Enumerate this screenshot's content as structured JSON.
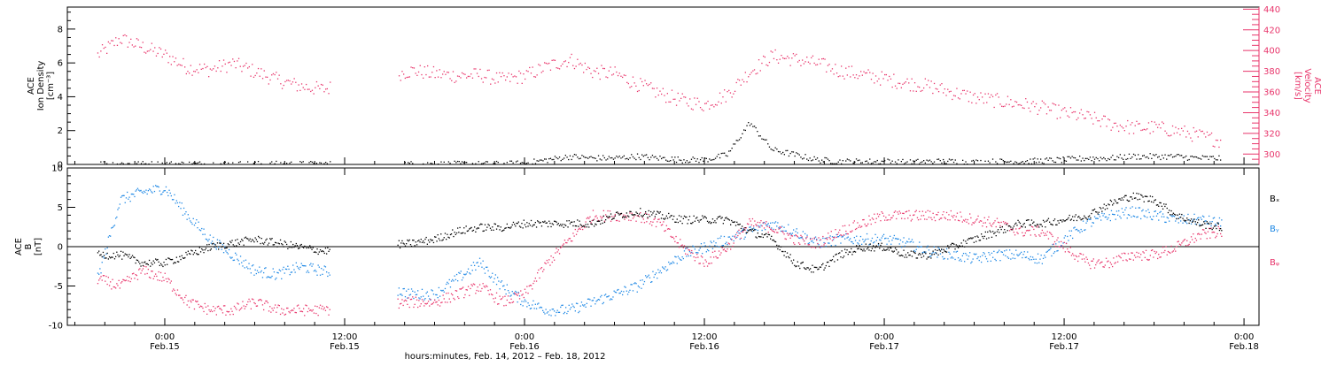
{
  "chart_data": [
    {
      "type": "scatter",
      "panel": "top",
      "ylabel_left": [
        "ACE",
        "Ion Density",
        "[cm⁻³]"
      ],
      "ylabel_right": [
        "ACE",
        "Velocity",
        "[km/s]"
      ],
      "y_left_ticks": [
        "0",
        "2",
        "4",
        "6",
        "8"
      ],
      "y_left_range": [
        0,
        9.3
      ],
      "y_right_ticks": [
        "300",
        "320",
        "340",
        "360",
        "380",
        "400",
        "420",
        "440"
      ],
      "y_right_range": [
        290,
        442
      ],
      "colors": {
        "density": "#000000",
        "velocity": "#e8356b"
      },
      "series": [
        {
          "name": "",
          "axis": "right",
          "color": "#e8356b",
          "x_hours": [
            -4.5,
            -3,
            -1.5,
            0,
            1.5,
            3,
            4.5,
            6,
            7.5,
            9,
            10.5,
            16.5,
            18,
            19.5,
            21,
            22.5,
            24,
            25.5,
            27,
            28.5,
            30,
            31.5,
            33,
            34.5,
            36,
            37.5,
            39,
            40.5,
            42,
            43.5,
            45,
            46.5,
            48,
            49.5,
            51,
            52.5,
            54,
            55.5,
            57,
            58.5,
            60,
            61.5,
            63,
            64.5,
            66,
            67.5,
            69,
            70.5
          ],
          "values": [
            396,
            412,
            404,
            396,
            384,
            382,
            388,
            380,
            372,
            366,
            363,
            381,
            378,
            376,
            377,
            372,
            376,
            385,
            392,
            380,
            378,
            368,
            359,
            352,
            348,
            358,
            380,
            395,
            392,
            388,
            381,
            377,
            373,
            369,
            366,
            360,
            355,
            352,
            349,
            345,
            340,
            336,
            330,
            326,
            326,
            323,
            318,
            313
          ]
        },
        {
          "name": "",
          "axis": "left",
          "color": "#000000",
          "x_hours": [
            -4.5,
            -3,
            -1.5,
            0,
            1.5,
            3,
            4.5,
            6,
            7.5,
            9,
            10.5,
            16.5,
            18,
            19.5,
            21,
            22.5,
            24,
            25.5,
            27,
            28.5,
            30,
            31.5,
            33,
            34.5,
            36,
            37.5,
            39,
            40.5,
            42,
            43.5,
            45,
            46.5,
            48,
            49.5,
            51,
            52.5,
            54,
            55.5,
            57,
            58.5,
            60,
            61.5,
            63,
            64.5,
            66,
            67.5,
            69,
            70.5
          ],
          "values": [
            0.08,
            0.06,
            0.05,
            0.05,
            0.05,
            0.05,
            0.05,
            0.05,
            0.05,
            0.05,
            0.05,
            0.05,
            0.05,
            0.05,
            0.05,
            0.05,
            0.1,
            0.3,
            0.5,
            0.4,
            0.4,
            0.5,
            0.4,
            0.3,
            0.3,
            0.6,
            2.5,
            0.9,
            0.6,
            0.3,
            0.2,
            0.2,
            0.2,
            0.15,
            0.2,
            0.2,
            0.15,
            0.2,
            0.2,
            0.25,
            0.3,
            0.4,
            0.4,
            0.5,
            0.5,
            0.5,
            0.4,
            0.4
          ]
        }
      ],
      "gap_hours": [
        11,
        15.5
      ]
    },
    {
      "type": "scatter",
      "panel": "bottom",
      "ylabel_left": [
        "ACE",
        "B",
        "[nT]"
      ],
      "y_left_ticks": [
        "-10",
        "-5",
        "0",
        "5",
        "10"
      ],
      "y_left_range": [
        -10,
        10
      ],
      "zero_line": true,
      "legend": [
        "Bₓ",
        "Bᵧ",
        "Bᵩ"
      ],
      "legend_placement": "right",
      "series": [
        {
          "name": "Bₓ",
          "color": "#000000",
          "x_hours": [
            -4.5,
            -3,
            -1.5,
            0,
            1.5,
            3,
            4.5,
            6,
            7.5,
            9,
            10.5,
            16.5,
            18,
            19.5,
            21,
            22.5,
            24,
            25.5,
            27,
            28.5,
            30,
            31.5,
            33,
            34.5,
            36,
            37.5,
            39,
            40.5,
            42,
            43.5,
            45,
            46.5,
            48,
            49.5,
            51,
            52.5,
            54,
            55.5,
            57,
            58.5,
            60,
            61.5,
            63,
            64.5,
            66,
            67.5,
            69,
            70.5
          ],
          "values": [
            -1,
            -1,
            -2,
            -2,
            -1,
            0,
            0.5,
            1,
            0.5,
            0,
            -0.5,
            0.5,
            1,
            2,
            2.5,
            2.5,
            3,
            3,
            3,
            3,
            4,
            4.5,
            4,
            3.5,
            3.5,
            3.5,
            2,
            1,
            -2,
            -3,
            -1,
            0,
            0,
            -1,
            -1,
            0,
            1,
            2,
            3,
            3,
            3.5,
            4,
            5.5,
            6.5,
            6,
            4,
            3,
            2.5
          ]
        },
        {
          "name": "Bᵧ",
          "color": "#1e88e5",
          "x_hours": [
            -4.5,
            -3,
            -1.5,
            0,
            1.5,
            3,
            4.5,
            6,
            7.5,
            9,
            10.5,
            16.5,
            18,
            19.5,
            21,
            22.5,
            24,
            25.5,
            27,
            28.5,
            30,
            31.5,
            33,
            34.5,
            36,
            37.5,
            39,
            40.5,
            42,
            43.5,
            45,
            46.5,
            48,
            49.5,
            51,
            52.5,
            54,
            55.5,
            57,
            58.5,
            60,
            61.5,
            63,
            64.5,
            66,
            67.5,
            69,
            70.5
          ],
          "values": [
            -4,
            6,
            7,
            7.5,
            4,
            1,
            -1,
            -3,
            -3.5,
            -2.5,
            -3,
            -6,
            -6,
            -4,
            -2,
            -5,
            -7,
            -8,
            -8,
            -7,
            -6,
            -5,
            -3,
            -1,
            0,
            1,
            2,
            3,
            2,
            0.5,
            1,
            1,
            1,
            0.5,
            -0.5,
            -1,
            -1.5,
            -1,
            -1,
            -1.5,
            1,
            3,
            4,
            4.5,
            4,
            3.5,
            3.5,
            3
          ]
        },
        {
          "name": "Bᵩ",
          "color": "#e8356b",
          "x_hours": [
            -4.5,
            -3,
            -1.5,
            0,
            1.5,
            3,
            4.5,
            6,
            7.5,
            9,
            10.5,
            16.5,
            18,
            19.5,
            21,
            22.5,
            24,
            25.5,
            27,
            28.5,
            30,
            31.5,
            33,
            34.5,
            36,
            37.5,
            39,
            40.5,
            42,
            43.5,
            45,
            46.5,
            48,
            49.5,
            51,
            52.5,
            54,
            55.5,
            57,
            58.5,
            60,
            61.5,
            63,
            64.5,
            66,
            67.5,
            69,
            70.5
          ],
          "values": [
            -4,
            -5,
            -3,
            -4,
            -7,
            -8,
            -8,
            -7,
            -8,
            -8,
            -8,
            -7,
            -7,
            -6,
            -5,
            -7,
            -6,
            -2,
            1,
            4,
            4,
            4,
            3,
            0,
            -2,
            0,
            3,
            2.5,
            1,
            0.5,
            2,
            3,
            4,
            4,
            4,
            4,
            3.5,
            3,
            2,
            2,
            0,
            -2,
            -2,
            -1,
            -1,
            0,
            1.5,
            2
          ]
        }
      ],
      "gap_hours": [
        11,
        15.5
      ]
    }
  ],
  "x_axis": {
    "range_hours": [
      -6.5,
      73
    ],
    "tick_hours": [
      0,
      12,
      24,
      36,
      48,
      60,
      72
    ],
    "tick_time": [
      "0:00",
      "12:00",
      "0:00",
      "12:00",
      "0:00",
      "12:00",
      "0:00"
    ],
    "tick_date": [
      "Feb.15",
      "Feb.15",
      "Feb.16",
      "Feb.16",
      "Feb.17",
      "Feb.17",
      "Feb.18"
    ],
    "title": "hours:minutes, Feb. 14, 2012 – Feb. 18, 2012"
  }
}
